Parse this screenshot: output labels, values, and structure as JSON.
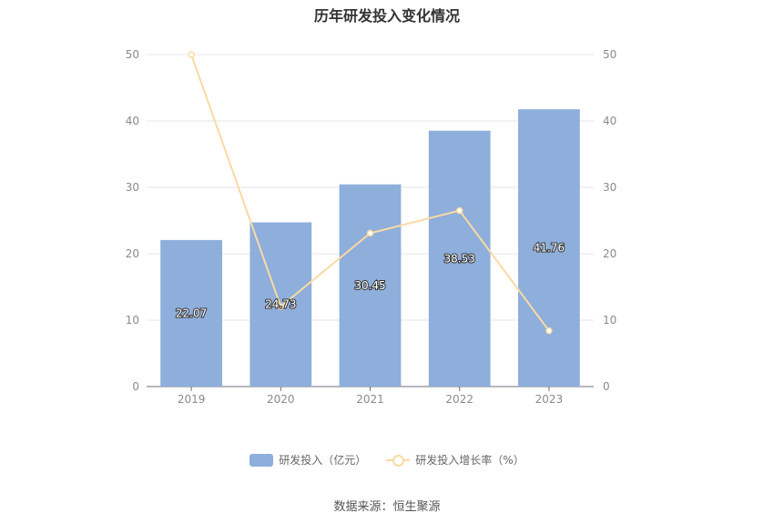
{
  "chart_data": {
    "type": "bar",
    "title": "历年研发投入变化情况",
    "categories": [
      "2019",
      "2020",
      "2021",
      "2022",
      "2023"
    ],
    "series": [
      {
        "name": "研发投入（亿元）",
        "type": "bar",
        "axis": "left",
        "color": "#8eaedb",
        "values": [
          22.07,
          24.73,
          30.45,
          38.53,
          41.76
        ],
        "data_labels": [
          "22.07",
          "24.73",
          "30.45",
          "38.53",
          "41.76"
        ]
      },
      {
        "name": "研发投入增长率（%）",
        "type": "line",
        "axis": "right",
        "color": "#fbd9a4",
        "values": [
          50,
          12.05,
          23.1,
          26.5,
          8.4
        ]
      }
    ],
    "ylim": [
      0,
      50
    ],
    "y2lim": [
      0,
      50
    ],
    "yticks": [
      "0",
      "10",
      "20",
      "30",
      "40",
      "50"
    ],
    "y2ticks": [
      "0",
      "10",
      "20",
      "30",
      "40",
      "50"
    ],
    "grid": true,
    "legend_position": "bottom-center"
  },
  "source_text": "数据来源：恒生聚源"
}
